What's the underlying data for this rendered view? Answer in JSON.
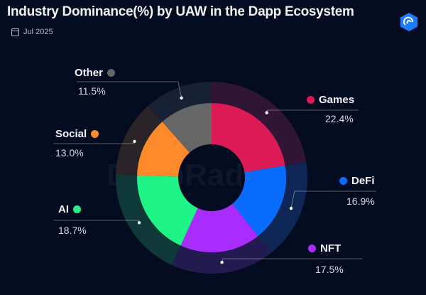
{
  "header": {
    "title": "Industry Dominance(%) by UAW in the Dapp Ecosystem",
    "date": "Jul 2025",
    "calendar_icon": "calendar-icon",
    "logo_icon": "dappradar-logo-icon"
  },
  "watermark": "DappRadar",
  "colors": {
    "background": "#020b1f"
  },
  "chart_data": {
    "type": "pie",
    "style": "donut",
    "categories": [
      "Games",
      "DeFi",
      "NFT",
      "AI",
      "Social",
      "Other"
    ],
    "values": [
      22.4,
      16.9,
      17.5,
      18.7,
      13.0,
      11.5
    ],
    "value_labels": [
      "22.4%",
      "16.9%",
      "17.5%",
      "18.7%",
      "13.0%",
      "11.5%"
    ],
    "colors": [
      "#dc1a55",
      "#0a6cff",
      "#a92cff",
      "#1ef586",
      "#ff8a2b",
      "#666666"
    ],
    "outer_ring_colors": [
      "#301536",
      "#0d2656",
      "#231a4f",
      "#0f3838",
      "#2a2428",
      "#172135"
    ],
    "legend_placement": "around"
  }
}
